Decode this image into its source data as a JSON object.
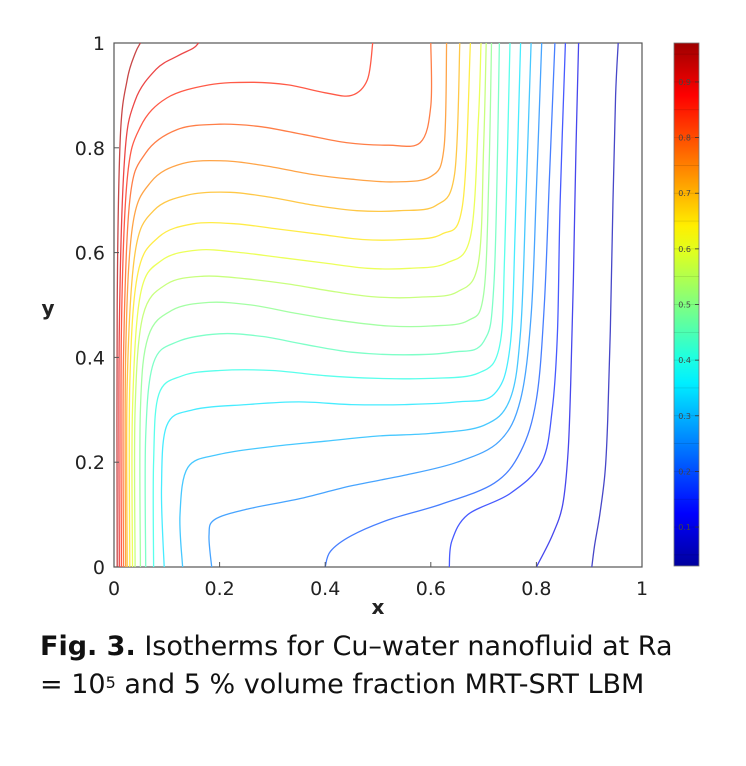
{
  "chart_data": {
    "type": "contour",
    "xlabel": "x",
    "ylabel": "y",
    "xlim": [
      0,
      1
    ],
    "ylim": [
      0,
      1
    ],
    "x_ticks": [
      "0",
      "0.2",
      "0.4",
      "0.6",
      "0.8",
      "1"
    ],
    "y_ticks": [
      "0",
      "0.2",
      "0.4",
      "0.6",
      "0.8",
      "1"
    ],
    "colorbar": {
      "range": [
        0.03,
        0.97
      ],
      "ticks": [
        "0.1",
        "0.2",
        "0.3",
        "0.4",
        "0.5",
        "0.6",
        "0.7",
        "0.8",
        "0.9"
      ],
      "colormap": "jet"
    },
    "contour_levels": [
      0.05,
      0.1,
      0.15,
      0.2,
      0.25,
      0.3,
      0.35,
      0.4,
      0.45,
      0.5,
      0.55,
      0.6,
      0.65,
      0.7,
      0.75,
      0.8,
      0.85,
      0.9,
      0.95
    ],
    "isotherms": [
      {
        "level": 0.05,
        "points": [
          [
            0.905,
            0
          ],
          [
            0.91,
            0.04
          ],
          [
            0.92,
            0.1
          ],
          [
            0.93,
            0.18
          ],
          [
            0.935,
            0.28
          ],
          [
            0.94,
            0.45
          ],
          [
            0.945,
            0.7
          ],
          [
            0.95,
            0.9
          ],
          [
            0.955,
            1
          ]
        ]
      },
      {
        "level": 0.1,
        "points": [
          [
            0.8,
            0
          ],
          [
            0.83,
            0.06
          ],
          [
            0.85,
            0.12
          ],
          [
            0.86,
            0.22
          ],
          [
            0.865,
            0.35
          ],
          [
            0.87,
            0.55
          ],
          [
            0.875,
            0.8
          ],
          [
            0.88,
            1
          ]
        ]
      },
      {
        "level": 0.15,
        "points": [
          [
            0.635,
            0
          ],
          [
            0.64,
            0.05
          ],
          [
            0.67,
            0.1
          ],
          [
            0.75,
            0.14
          ],
          [
            0.81,
            0.2
          ],
          [
            0.83,
            0.3
          ],
          [
            0.84,
            0.45
          ],
          [
            0.845,
            0.7
          ],
          [
            0.855,
            1
          ]
        ]
      },
      {
        "level": 0.2,
        "points": [
          [
            0.4,
            0
          ],
          [
            0.41,
            0.03
          ],
          [
            0.45,
            0.06
          ],
          [
            0.52,
            0.09
          ],
          [
            0.62,
            0.12
          ],
          [
            0.72,
            0.16
          ],
          [
            0.77,
            0.22
          ],
          [
            0.8,
            0.32
          ],
          [
            0.815,
            0.5
          ],
          [
            0.825,
            0.75
          ],
          [
            0.835,
            1
          ]
        ]
      },
      {
        "level": 0.25,
        "points": [
          [
            0.185,
            0
          ],
          [
            0.18,
            0.06
          ],
          [
            0.19,
            0.09
          ],
          [
            0.25,
            0.11
          ],
          [
            0.35,
            0.13
          ],
          [
            0.45,
            0.155
          ],
          [
            0.55,
            0.175
          ],
          [
            0.65,
            0.2
          ],
          [
            0.73,
            0.24
          ],
          [
            0.77,
            0.32
          ],
          [
            0.79,
            0.48
          ],
          [
            0.8,
            0.72
          ],
          [
            0.81,
            1
          ]
        ]
      },
      {
        "level": 0.3,
        "points": [
          [
            0.13,
            0
          ],
          [
            0.125,
            0.1
          ],
          [
            0.14,
            0.19
          ],
          [
            0.2,
            0.215
          ],
          [
            0.3,
            0.23
          ],
          [
            0.4,
            0.24
          ],
          [
            0.5,
            0.25
          ],
          [
            0.6,
            0.255
          ],
          [
            0.7,
            0.27
          ],
          [
            0.75,
            0.32
          ],
          [
            0.77,
            0.45
          ],
          [
            0.78,
            0.7
          ],
          [
            0.79,
            1
          ]
        ]
      },
      {
        "level": 0.35,
        "points": [
          [
            0.095,
            0
          ],
          [
            0.09,
            0.15
          ],
          [
            0.1,
            0.27
          ],
          [
            0.15,
            0.3
          ],
          [
            0.25,
            0.31
          ],
          [
            0.35,
            0.315
          ],
          [
            0.45,
            0.31
          ],
          [
            0.55,
            0.31
          ],
          [
            0.65,
            0.315
          ],
          [
            0.72,
            0.33
          ],
          [
            0.75,
            0.42
          ],
          [
            0.76,
            0.65
          ],
          [
            0.77,
            1
          ]
        ]
      },
      {
        "level": 0.4,
        "points": [
          [
            0.075,
            0
          ],
          [
            0.075,
            0.2
          ],
          [
            0.085,
            0.33
          ],
          [
            0.13,
            0.365
          ],
          [
            0.2,
            0.375
          ],
          [
            0.3,
            0.375
          ],
          [
            0.4,
            0.365
          ],
          [
            0.5,
            0.36
          ],
          [
            0.6,
            0.36
          ],
          [
            0.69,
            0.37
          ],
          [
            0.73,
            0.42
          ],
          [
            0.74,
            0.6
          ],
          [
            0.75,
            1
          ]
        ]
      },
      {
        "level": 0.45,
        "points": [
          [
            0.06,
            0
          ],
          [
            0.06,
            0.25
          ],
          [
            0.075,
            0.39
          ],
          [
            0.12,
            0.43
          ],
          [
            0.2,
            0.445
          ],
          [
            0.28,
            0.44
          ],
          [
            0.36,
            0.425
          ],
          [
            0.45,
            0.41
          ],
          [
            0.55,
            0.405
          ],
          [
            0.64,
            0.41
          ],
          [
            0.7,
            0.43
          ],
          [
            0.72,
            0.55
          ],
          [
            0.73,
            1
          ]
        ]
      },
      {
        "level": 0.5,
        "points": [
          [
            0.05,
            0
          ],
          [
            0.05,
            0.3
          ],
          [
            0.065,
            0.44
          ],
          [
            0.11,
            0.49
          ],
          [
            0.18,
            0.505
          ],
          [
            0.26,
            0.5
          ],
          [
            0.34,
            0.485
          ],
          [
            0.43,
            0.47
          ],
          [
            0.52,
            0.46
          ],
          [
            0.6,
            0.46
          ],
          [
            0.67,
            0.47
          ],
          [
            0.7,
            0.52
          ],
          [
            0.71,
            0.75
          ],
          [
            0.715,
            1
          ]
        ]
      },
      {
        "level": 0.55,
        "points": [
          [
            0.04,
            0
          ],
          [
            0.04,
            0.3
          ],
          [
            0.055,
            0.48
          ],
          [
            0.1,
            0.54
          ],
          [
            0.17,
            0.555
          ],
          [
            0.25,
            0.55
          ],
          [
            0.33,
            0.54
          ],
          [
            0.42,
            0.525
          ],
          [
            0.5,
            0.515
          ],
          [
            0.58,
            0.515
          ],
          [
            0.65,
            0.525
          ],
          [
            0.69,
            0.58
          ],
          [
            0.7,
            0.8
          ],
          [
            0.705,
            1
          ]
        ]
      },
      {
        "level": 0.6,
        "points": [
          [
            0.035,
            0
          ],
          [
            0.035,
            0.3
          ],
          [
            0.05,
            0.52
          ],
          [
            0.09,
            0.585
          ],
          [
            0.16,
            0.605
          ],
          [
            0.24,
            0.6
          ],
          [
            0.32,
            0.59
          ],
          [
            0.4,
            0.58
          ],
          [
            0.48,
            0.57
          ],
          [
            0.56,
            0.57
          ],
          [
            0.63,
            0.58
          ],
          [
            0.675,
            0.63
          ],
          [
            0.69,
            0.85
          ],
          [
            0.695,
            1
          ]
        ]
      },
      {
        "level": 0.65,
        "points": [
          [
            0.03,
            0
          ],
          [
            0.03,
            0.35
          ],
          [
            0.045,
            0.56
          ],
          [
            0.085,
            0.63
          ],
          [
            0.15,
            0.655
          ],
          [
            0.23,
            0.655
          ],
          [
            0.31,
            0.645
          ],
          [
            0.39,
            0.635
          ],
          [
            0.47,
            0.625
          ],
          [
            0.55,
            0.625
          ],
          [
            0.62,
            0.635
          ],
          [
            0.66,
            0.69
          ],
          [
            0.675,
            1
          ]
        ]
      },
      {
        "level": 0.7,
        "points": [
          [
            0.025,
            0
          ],
          [
            0.025,
            0.35
          ],
          [
            0.04,
            0.6
          ],
          [
            0.075,
            0.68
          ],
          [
            0.14,
            0.71
          ],
          [
            0.22,
            0.715
          ],
          [
            0.3,
            0.705
          ],
          [
            0.38,
            0.69
          ],
          [
            0.46,
            0.68
          ],
          [
            0.54,
            0.68
          ],
          [
            0.61,
            0.69
          ],
          [
            0.645,
            0.75
          ],
          [
            0.655,
            1
          ]
        ]
      },
      {
        "level": 0.75,
        "points": [
          [
            0.022,
            0
          ],
          [
            0.022,
            0.4
          ],
          [
            0.035,
            0.65
          ],
          [
            0.07,
            0.735
          ],
          [
            0.13,
            0.77
          ],
          [
            0.21,
            0.775
          ],
          [
            0.29,
            0.765
          ],
          [
            0.37,
            0.75
          ],
          [
            0.45,
            0.74
          ],
          [
            0.53,
            0.735
          ],
          [
            0.6,
            0.745
          ],
          [
            0.625,
            0.8
          ],
          [
            0.63,
            1
          ]
        ]
      },
      {
        "level": 0.8,
        "points": [
          [
            0.018,
            0
          ],
          [
            0.018,
            0.4
          ],
          [
            0.03,
            0.7
          ],
          [
            0.06,
            0.79
          ],
          [
            0.12,
            0.835
          ],
          [
            0.2,
            0.845
          ],
          [
            0.28,
            0.84
          ],
          [
            0.36,
            0.825
          ],
          [
            0.44,
            0.81
          ],
          [
            0.52,
            0.805
          ],
          [
            0.58,
            0.81
          ],
          [
            0.6,
            0.88
          ],
          [
            0.6,
            1
          ]
        ]
      },
      {
        "level": 0.85,
        "points": [
          [
            0.014,
            0
          ],
          [
            0.014,
            0.45
          ],
          [
            0.025,
            0.74
          ],
          [
            0.05,
            0.84
          ],
          [
            0.1,
            0.895
          ],
          [
            0.18,
            0.92
          ],
          [
            0.26,
            0.925
          ],
          [
            0.33,
            0.92
          ],
          [
            0.4,
            0.905
          ],
          [
            0.45,
            0.9
          ],
          [
            0.48,
            0.93
          ],
          [
            0.49,
            1
          ]
        ]
      },
      {
        "level": 0.9,
        "points": [
          [
            0.01,
            0
          ],
          [
            0.01,
            0.45
          ],
          [
            0.02,
            0.78
          ],
          [
            0.04,
            0.89
          ],
          [
            0.08,
            0.95
          ],
          [
            0.12,
            0.975
          ],
          [
            0.15,
            0.99
          ],
          [
            0.16,
            1
          ]
        ]
      },
      {
        "level": 0.95,
        "points": [
          [
            0.006,
            0
          ],
          [
            0.006,
            0.5
          ],
          [
            0.012,
            0.82
          ],
          [
            0.025,
            0.93
          ],
          [
            0.04,
            0.98
          ],
          [
            0.05,
            1
          ]
        ]
      }
    ]
  },
  "caption": {
    "label": "Fig. 3.",
    "line1": " Isotherms for Cu–water nanofluid at Ra",
    "line2_prefix": "= 10",
    "exponent": "5",
    "line2_suffix": " and 5 % volume fraction MRT-SRT LBM"
  }
}
